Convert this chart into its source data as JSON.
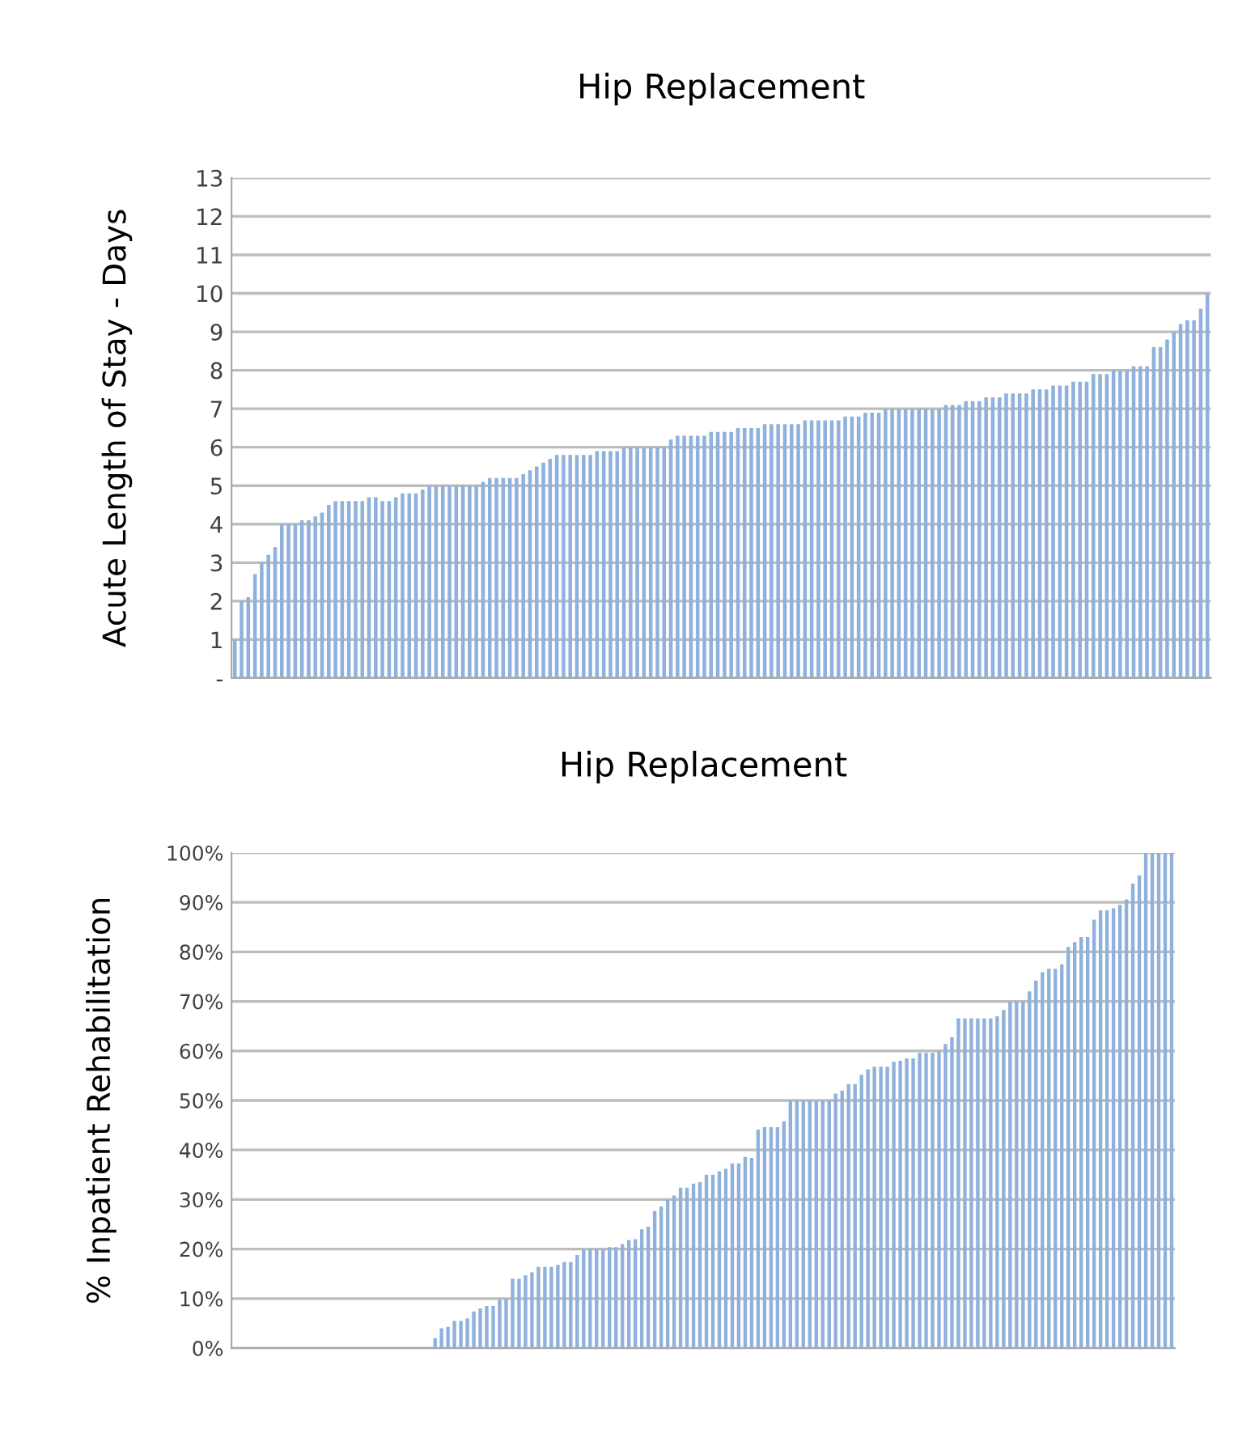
{
  "chart_data": [
    {
      "type": "bar",
      "title": "Hip Replacement",
      "ylabel": "Acute Length of Stay - Days",
      "color": "#8fb1dc",
      "grid": "y",
      "tick_labels": "y",
      "categories": [
        null,
        null,
        null,
        null,
        null,
        null,
        null,
        null,
        null,
        null,
        null,
        null,
        null,
        null,
        null,
        null,
        null,
        null,
        null,
        null,
        null,
        null,
        null,
        null,
        null,
        null,
        null,
        null,
        null,
        null,
        null,
        null,
        null,
        null,
        null,
        null,
        null,
        null,
        null,
        null,
        null,
        null,
        null,
        null,
        null,
        null,
        null,
        null,
        null,
        null,
        null,
        null,
        null,
        null,
        null,
        null,
        null,
        null,
        null,
        null,
        null,
        null,
        null,
        null,
        null,
        null,
        null,
        null,
        null,
        null,
        null,
        null,
        null,
        null,
        null,
        null,
        null,
        null,
        null,
        null,
        null,
        null,
        null,
        null,
        null,
        null,
        null,
        null,
        null,
        null,
        null,
        null,
        null,
        null,
        null,
        null,
        null,
        null,
        null,
        null,
        null,
        null,
        null,
        null,
        null,
        null,
        null,
        null,
        null,
        null,
        null,
        null,
        null,
        null,
        null,
        null,
        null,
        null,
        null,
        null,
        null,
        null,
        null,
        null,
        null,
        null,
        null,
        null,
        null,
        null,
        null,
        null,
        null,
        null,
        null,
        null,
        null,
        null,
        null,
        null,
        null,
        null,
        null,
        null,
        null,
        null
      ],
      "values": [
        1.0,
        2.0,
        2.1,
        2.7,
        3.0,
        3.2,
        3.4,
        4.0,
        4.0,
        4.0,
        4.1,
        4.1,
        4.2,
        4.3,
        4.5,
        4.6,
        4.6,
        4.6,
        4.6,
        4.6,
        4.7,
        4.7,
        4.6,
        4.6,
        4.7,
        4.8,
        4.8,
        4.8,
        4.9,
        5.0,
        5.0,
        5.0,
        5.0,
        5.0,
        5.0,
        5.0,
        5.0,
        5.1,
        5.2,
        5.2,
        5.2,
        5.2,
        5.2,
        5.3,
        5.4,
        5.5,
        5.6,
        5.7,
        5.8,
        5.8,
        5.8,
        5.8,
        5.8,
        5.8,
        5.9,
        5.9,
        5.9,
        5.9,
        6.0,
        6.0,
        6.0,
        6.0,
        6.0,
        6.0,
        6.0,
        6.2,
        6.3,
        6.3,
        6.3,
        6.3,
        6.3,
        6.4,
        6.4,
        6.4,
        6.4,
        6.5,
        6.5,
        6.5,
        6.5,
        6.6,
        6.6,
        6.6,
        6.6,
        6.6,
        6.6,
        6.7,
        6.7,
        6.7,
        6.7,
        6.7,
        6.7,
        6.8,
        6.8,
        6.8,
        6.9,
        6.9,
        6.9,
        7.0,
        7.0,
        7.0,
        7.0,
        7.0,
        7.0,
        7.0,
        7.0,
        7.0,
        7.1,
        7.1,
        7.1,
        7.2,
        7.2,
        7.2,
        7.3,
        7.3,
        7.3,
        7.4,
        7.4,
        7.4,
        7.4,
        7.5,
        7.5,
        7.5,
        7.6,
        7.6,
        7.6,
        7.7,
        7.7,
        7.7,
        7.9,
        7.9,
        7.9,
        8.0,
        8.0,
        8.0,
        8.1,
        8.1,
        8.1,
        8.6,
        8.6,
        8.8,
        9.0,
        9.2,
        9.3,
        9.3,
        9.6,
        10.0
      ],
      "ylim": [
        0,
        13
      ],
      "yticks": [
        {
          "value": 0,
          "label": "-"
        },
        1,
        2,
        3,
        4,
        5,
        6,
        7,
        8,
        9,
        10,
        11,
        12,
        13
      ]
    },
    {
      "type": "bar",
      "title": "Hip Replacement",
      "ylabel": "% Inpatient Rehabilitation",
      "color": "#8fb1dc",
      "grid": "y",
      "tick_labels": "y",
      "categories": [
        null,
        null,
        null,
        null,
        null,
        null,
        null,
        null,
        null,
        null,
        null,
        null,
        null,
        null,
        null,
        null,
        null,
        null,
        null,
        null,
        null,
        null,
        null,
        null,
        null,
        null,
        null,
        null,
        null,
        null,
        null,
        null,
        null,
        null,
        null,
        null,
        null,
        null,
        null,
        null,
        null,
        null,
        null,
        null,
        null,
        null,
        null,
        null,
        null,
        null,
        null,
        null,
        null,
        null,
        null,
        null,
        null,
        null,
        null,
        null,
        null,
        null,
        null,
        null,
        null,
        null,
        null,
        null,
        null,
        null,
        null,
        null,
        null,
        null,
        null,
        null,
        null,
        null,
        null,
        null,
        null,
        null,
        null,
        null,
        null,
        null,
        null,
        null,
        null,
        null,
        null,
        null,
        null,
        null,
        null,
        null,
        null,
        null,
        null,
        null,
        null,
        null,
        null,
        null,
        null,
        null,
        null,
        null,
        null,
        null,
        null,
        null,
        null,
        null,
        null,
        null,
        null,
        null,
        null,
        null,
        null,
        null,
        null,
        null,
        null,
        null,
        null,
        null,
        null,
        null,
        null,
        null,
        null,
        null,
        null,
        null,
        null,
        null,
        null,
        null,
        null,
        null,
        null,
        null,
        null,
        null
      ],
      "values": [
        0,
        0,
        0,
        0,
        0,
        0,
        0,
        0,
        0,
        0,
        0,
        0,
        0,
        0,
        0,
        0,
        0,
        0,
        0,
        0,
        0,
        0,
        0,
        0,
        0,
        0,
        0,
        0,
        0,
        0,
        0,
        2,
        4,
        4.3,
        5.5,
        5.5,
        6,
        7.4,
        8,
        8.5,
        8.5,
        9.8,
        10,
        14,
        14,
        14.7,
        15.3,
        16.4,
        16.4,
        16.4,
        16.8,
        17.4,
        17.4,
        18.8,
        19.9,
        20,
        20,
        20,
        20.4,
        20.4,
        21,
        21.8,
        22,
        24,
        24.5,
        27.7,
        28.6,
        30,
        30.8,
        32.4,
        32.4,
        33.2,
        33.5,
        35,
        35,
        35.7,
        36.2,
        37.3,
        37.3,
        38.6,
        38.4,
        44.1,
        44.6,
        44.6,
        44.6,
        45.8,
        50,
        50,
        50,
        50,
        50,
        50,
        50,
        51.4,
        52,
        53.3,
        53.3,
        55.2,
        56.3,
        56.8,
        56.8,
        56.8,
        57.8,
        58,
        58.5,
        58.5,
        59.6,
        59.6,
        59.6,
        60,
        61.4,
        62.8,
        66.6,
        66.6,
        66.6,
        66.6,
        66.6,
        66.6,
        67,
        68.3,
        70,
        70,
        70,
        72,
        74.2,
        75.9,
        76.6,
        76.6,
        77.5,
        81,
        82,
        83,
        83,
        86.5,
        88.4,
        88.4,
        88.8,
        89.5,
        90.6,
        93.8,
        95.4,
        100,
        100,
        100,
        100,
        100
      ],
      "ylim": [
        0,
        100
      ],
      "yticks": [
        {
          "value": 0,
          "label": "0%"
        },
        {
          "value": 10,
          "label": "10%"
        },
        {
          "value": 20,
          "label": "20%"
        },
        {
          "value": 30,
          "label": "30%"
        },
        {
          "value": 40,
          "label": "40%"
        },
        {
          "value": 50,
          "label": "50%"
        },
        {
          "value": 60,
          "label": "60%"
        },
        {
          "value": 70,
          "label": "70%"
        },
        {
          "value": 80,
          "label": "80%"
        },
        {
          "value": 90,
          "label": "90%"
        },
        {
          "value": 100,
          "label": "100%"
        }
      ]
    }
  ]
}
